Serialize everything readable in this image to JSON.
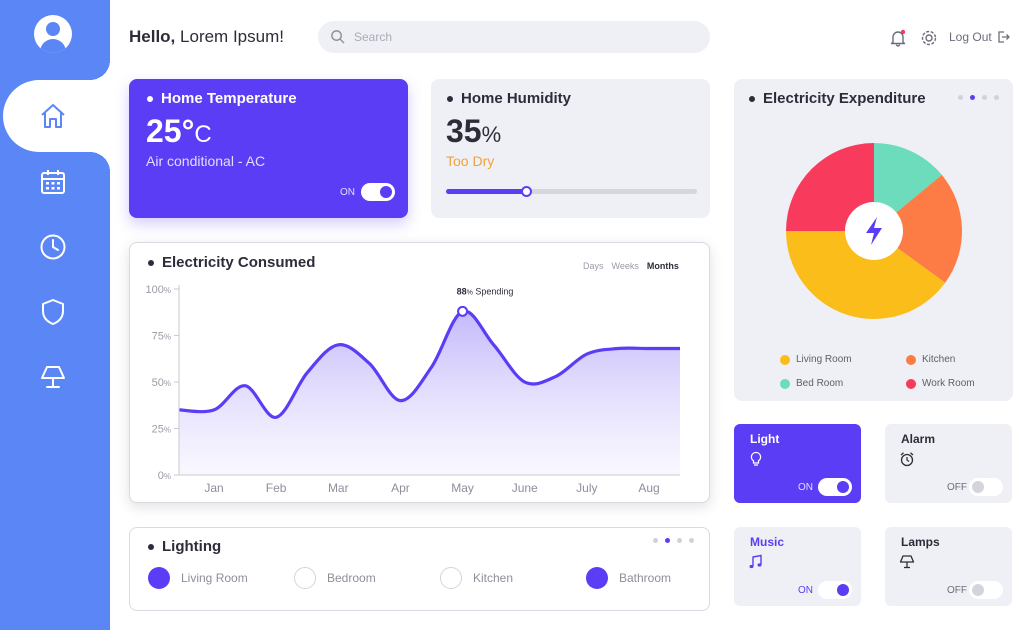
{
  "user": {
    "greeting": "Hello,",
    "name": "Lorem Ipsum!"
  },
  "search": {
    "placeholder": "Search"
  },
  "header": {
    "logout_label": "Log Out"
  },
  "sidebar": {
    "items": [
      {
        "icon": "home-icon",
        "active": true
      },
      {
        "icon": "calendar-icon",
        "active": false
      },
      {
        "icon": "clock-icon",
        "active": false
      },
      {
        "icon": "shield-icon",
        "active": false
      },
      {
        "icon": "lamp-icon",
        "active": false
      }
    ]
  },
  "temperature": {
    "title": "Home Temperature",
    "value": "25°",
    "unit": "C",
    "mode": "Air conditional - AC",
    "toggle_label": "ON",
    "on": true
  },
  "humidity": {
    "title": "Home Humidity",
    "value": "35",
    "unit": "%",
    "status": "Too Dry",
    "level": 0.32
  },
  "expenditure": {
    "title": "Electricity Expenditure",
    "legend": [
      {
        "label": "Living Room",
        "color": "#fbbd1a"
      },
      {
        "label": "Kitchen",
        "color": "#fd7b45"
      },
      {
        "label": "Bed Room",
        "color": "#6ddcbd"
      },
      {
        "label": "Work Room",
        "color": "#f83a5c"
      }
    ]
  },
  "consumed": {
    "title": "Electricity Consumed",
    "tabs": [
      "Days",
      "Weeks",
      "Months"
    ],
    "active_tab": "Months",
    "peak_value": "88",
    "peak_unit": "%",
    "peak_label": "Spending"
  },
  "chart_data": {
    "type": "area",
    "categories": [
      "Jan",
      "Feb",
      "Mar",
      "Apr",
      "May",
      "June",
      "July",
      "Aug"
    ],
    "y_ticks": [
      "100",
      "75",
      "50",
      "25",
      "0"
    ],
    "y_tick_unit": "%",
    "ylim": [
      0,
      100
    ],
    "series": [
      {
        "x": [
          0,
          0.5,
          1,
          1.5,
          2,
          2.5,
          3,
          3.5,
          4,
          4.5,
          5,
          5.5,
          6,
          6.5,
          7
        ],
        "values": [
          35,
          48,
          31,
          55,
          70,
          60,
          40,
          58,
          88,
          70,
          50,
          53,
          65,
          68,
          68
        ]
      }
    ],
    "grid": false,
    "legend": "none",
    "color": "#5a3df5"
  },
  "pie_data": {
    "type": "pie",
    "slices": [
      {
        "label": "Bed Room",
        "value": 14,
        "color": "#6ddcbd"
      },
      {
        "label": "Kitchen",
        "value": 21,
        "color": "#fd7b45"
      },
      {
        "label": "Living Room",
        "value": 40,
        "color": "#fbbd1a"
      },
      {
        "label": "Work Room",
        "value": 25,
        "color": "#f83a5c"
      }
    ]
  },
  "lighting": {
    "title": "Lighting",
    "rooms": [
      {
        "label": "Living Room",
        "on": true
      },
      {
        "label": "Bedroom",
        "on": false
      },
      {
        "label": "Kitchen",
        "on": false
      },
      {
        "label": "Bathroom",
        "on": true
      }
    ]
  },
  "devices": {
    "light": {
      "name": "Light",
      "state": "ON",
      "icon": "bulb-icon"
    },
    "alarm": {
      "name": "Alarm",
      "state": "OFF",
      "icon": "alarm-clock-icon"
    },
    "music": {
      "name": "Music",
      "state": "ON",
      "icon": "music-note-icon"
    },
    "lamps": {
      "name": "Lamps",
      "state": "OFF",
      "icon": "lamp-icon"
    }
  },
  "colors": {
    "accent": "#5a3df5",
    "sidebar": "#5b86f5",
    "card_gray": "#eff0f5",
    "warning": "#f0a23a"
  }
}
